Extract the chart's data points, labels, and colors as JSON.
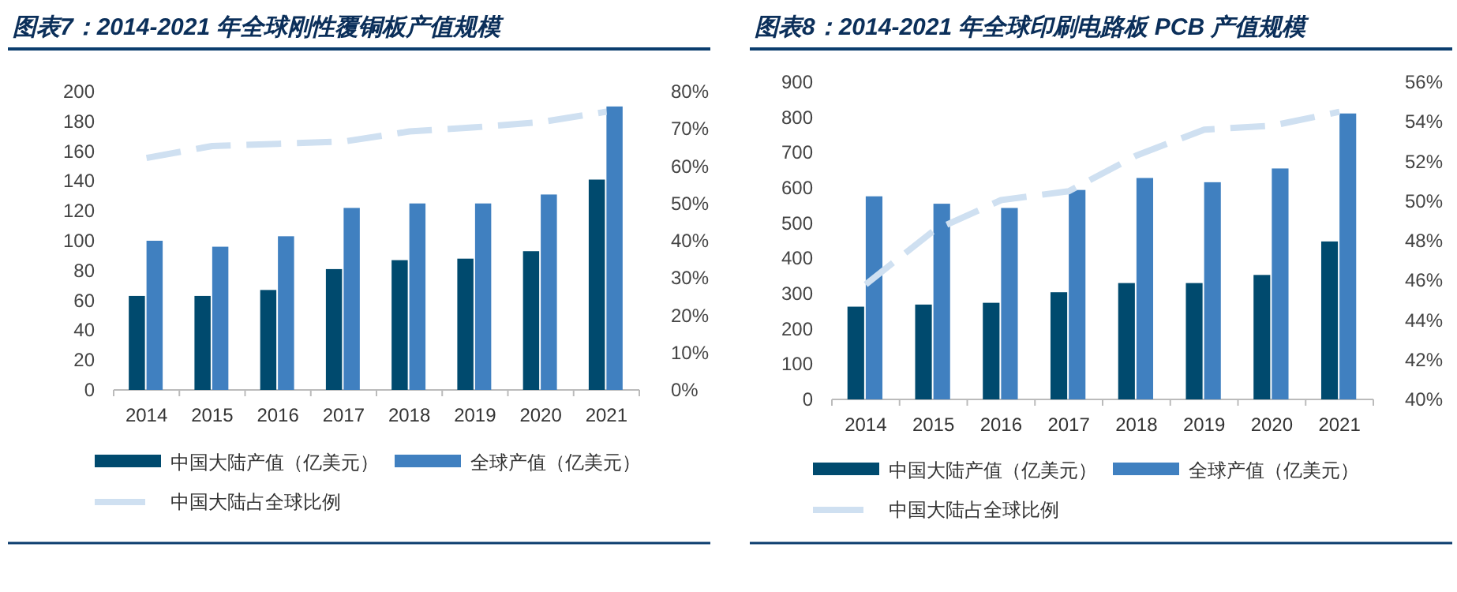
{
  "chart_data": [
    {
      "type": "bar",
      "title": "图表7：2014-2021 年全球刚性覆铜板产值规模",
      "categories": [
        "2014",
        "2015",
        "2016",
        "2017",
        "2018",
        "2019",
        "2020",
        "2021"
      ],
      "series": [
        {
          "name": "中国大陆产值（亿美元）",
          "color": "#004a6e",
          "values": [
            63,
            63,
            67,
            81,
            87,
            88,
            93,
            141
          ]
        },
        {
          "name": "全球产值（亿美元）",
          "color": "#4080c0",
          "values": [
            100,
            96,
            103,
            122,
            125,
            125,
            131,
            190
          ]
        },
        {
          "name": "中国大陆占全球比例",
          "type": "line",
          "axis": "y2",
          "color": "#cfe0f1",
          "line_style": "dashed",
          "values": [
            62.2,
            65.4,
            66,
            66.6,
            69.3,
            70.4,
            71.8,
            74.6
          ]
        }
      ],
      "ylim": [
        0,
        200
      ],
      "yticks": [
        0,
        20,
        40,
        60,
        80,
        100,
        120,
        140,
        160,
        180,
        200
      ],
      "y2lim": [
        0,
        80
      ],
      "y2ticks": [
        {
          "value": 0,
          "label": "0%"
        },
        {
          "value": 10,
          "label": "10%"
        },
        {
          "value": 20,
          "label": "20%"
        },
        {
          "value": 30,
          "label": "30%"
        },
        {
          "value": 40,
          "label": "40%"
        },
        {
          "value": 50,
          "label": "50%"
        },
        {
          "value": 60,
          "label": "60%"
        },
        {
          "value": 70,
          "label": "70%"
        },
        {
          "value": 80,
          "label": "80%"
        }
      ],
      "legend": "bottom",
      "grid": false
    },
    {
      "type": "bar",
      "title": "图表8：2014-2021 年全球印刷电路板 PCB 产值规模",
      "categories": [
        "2014",
        "2015",
        "2016",
        "2017",
        "2018",
        "2019",
        "2020",
        "2021"
      ],
      "series": [
        {
          "name": "中国大陆产值（亿美元）",
          "color": "#004a6e",
          "values": [
            263,
            269,
            274,
            304,
            330,
            330,
            353,
            448
          ]
        },
        {
          "name": "全球产值（亿美元）",
          "color": "#4080c0",
          "values": [
            576,
            555,
            543,
            594,
            628,
            616,
            655,
            811
          ]
        },
        {
          "name": "中国大陆占全球比例",
          "type": "line",
          "axis": "y2",
          "color": "#cfe0f1",
          "line_style": "dashed",
          "values": [
            45.8,
            48.5,
            50.05,
            50.5,
            52.3,
            53.6,
            53.8,
            54.5
          ]
        }
      ],
      "ylim": [
        0,
        900
      ],
      "yticks": [
        0,
        100,
        200,
        300,
        400,
        500,
        600,
        700,
        800,
        900
      ],
      "y2lim": [
        40,
        56
      ],
      "y2ticks": [
        {
          "value": 40,
          "label": "40%"
        },
        {
          "value": 42,
          "label": "42%"
        },
        {
          "value": 44,
          "label": "44%"
        },
        {
          "value": 46,
          "label": "46%"
        },
        {
          "value": 48,
          "label": "48%"
        },
        {
          "value": 50,
          "label": "50%"
        },
        {
          "value": 52,
          "label": "52%"
        },
        {
          "value": 54,
          "label": "54%"
        },
        {
          "value": 56,
          "label": "56%"
        }
      ],
      "legend": "bottom",
      "grid": false
    }
  ]
}
